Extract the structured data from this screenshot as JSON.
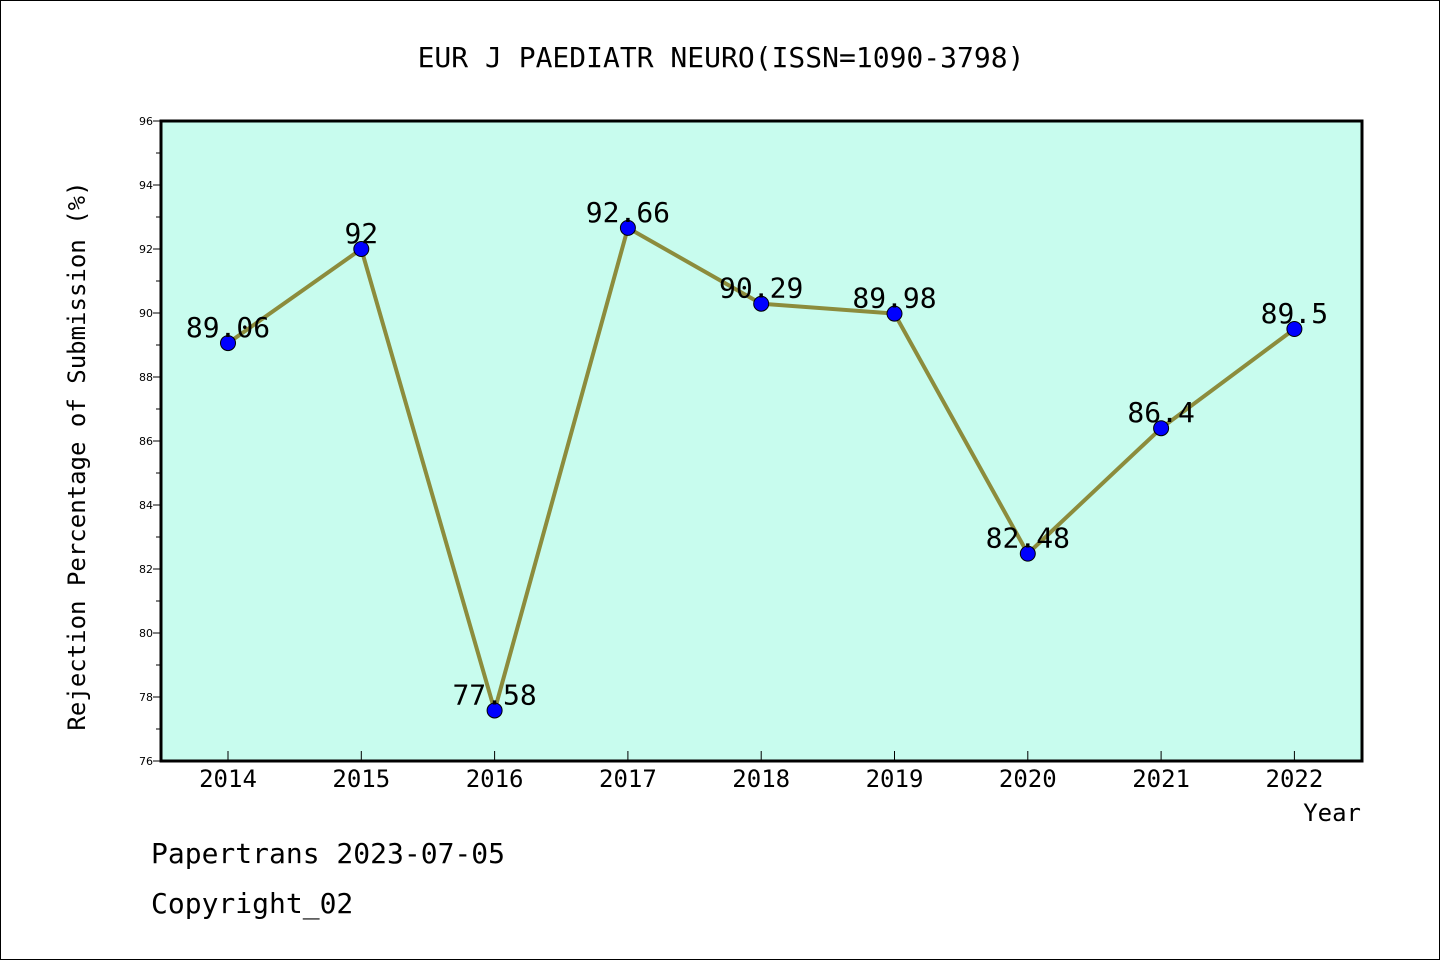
{
  "chart_data": {
    "type": "line",
    "title": "EUR J PAEDIATR NEURO(ISSN=1090-3798)",
    "xlabel": "Year",
    "ylabel": "Rejection Percentage of Submission (%)",
    "categories": [
      "2014",
      "2015",
      "2016",
      "2017",
      "2018",
      "2019",
      "2020",
      "2021",
      "2022"
    ],
    "values": [
      89.06,
      92,
      77.58,
      92.66,
      90.29,
      89.98,
      82.48,
      86.4,
      89.5
    ],
    "data_labels": [
      "89.06",
      "92",
      "77.58",
      "92.66",
      "90.29",
      "89.98",
      "82.48",
      "86.4",
      "89.5"
    ],
    "ylim": [
      76,
      96
    ],
    "yticks": [
      "76",
      "78",
      "80",
      "82",
      "84",
      "86",
      "88",
      "90",
      "92",
      "94",
      "96"
    ],
    "grid": false,
    "colors": {
      "plot_background": "#c8fcee",
      "line": "#8c8c3c",
      "marker": "#0000ff"
    }
  },
  "footer": {
    "line1": "Papertrans 2023-07-05",
    "line2": "Copyright_02"
  }
}
